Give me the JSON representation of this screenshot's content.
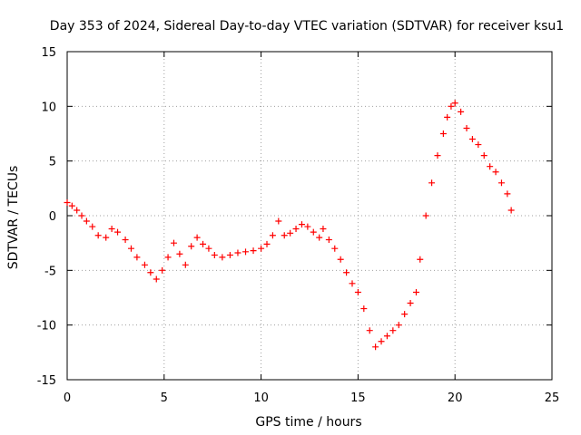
{
  "chart_data": {
    "type": "scatter",
    "title": "Day 353 of 2024, Sidereal Day-to-day VTEC variation (SDTVAR) for receiver ksu1",
    "xlabel": "GPS time / hours",
    "ylabel": "SDTVAR / TECUs",
    "xlim": [
      0,
      25
    ],
    "ylim": [
      -15,
      15
    ],
    "xticks": [
      "0",
      "5",
      "10",
      "15",
      "20",
      "25"
    ],
    "yticks": [
      "-15",
      "-10",
      "-5",
      "0",
      "5",
      "10",
      "15"
    ],
    "grid": true,
    "marker": "plus",
    "color": "#ff0000",
    "series": [
      {
        "name": "SDTVAR",
        "x": [
          0.0,
          0.25,
          0.5,
          0.75,
          1.0,
          1.3,
          1.6,
          2.0,
          2.3,
          2.6,
          3.0,
          3.3,
          3.6,
          4.0,
          4.3,
          4.6,
          4.9,
          5.2,
          5.5,
          5.8,
          6.1,
          6.4,
          6.7,
          7.0,
          7.3,
          7.6,
          8.0,
          8.4,
          8.8,
          9.2,
          9.6,
          10.0,
          10.3,
          10.6,
          10.9,
          11.2,
          11.5,
          11.8,
          12.1,
          12.4,
          12.7,
          13.0,
          13.2,
          13.5,
          13.8,
          14.1,
          14.4,
          14.7,
          15.0,
          15.3,
          15.6,
          15.9,
          16.2,
          16.5,
          16.8,
          17.1,
          17.4,
          17.7,
          18.0,
          18.2,
          18.5,
          18.8,
          19.1,
          19.4,
          19.6,
          19.8,
          20.0,
          20.3,
          20.6,
          20.9,
          21.2,
          21.5,
          21.8,
          22.1,
          22.4,
          22.7,
          22.9
        ],
        "y": [
          1.2,
          0.9,
          0.5,
          0.0,
          -0.5,
          -1.0,
          -1.8,
          -2.0,
          -1.2,
          -1.5,
          -2.2,
          -3.0,
          -3.8,
          -4.5,
          -5.2,
          -5.8,
          -5.0,
          -3.8,
          -2.5,
          -3.5,
          -4.5,
          -2.8,
          -2.0,
          -2.6,
          -3.0,
          -3.6,
          -3.8,
          -3.6,
          -3.4,
          -3.3,
          -3.2,
          -3.0,
          -2.6,
          -1.8,
          -0.5,
          -1.8,
          -1.6,
          -1.2,
          -0.8,
          -1.0,
          -1.5,
          -2.0,
          -1.2,
          -2.2,
          -3.0,
          -4.0,
          -5.2,
          -6.2,
          -7.0,
          -8.5,
          -10.5,
          -12.0,
          -11.5,
          -11.0,
          -10.5,
          -10.0,
          -9.0,
          -8.0,
          -7.0,
          -4.0,
          0.0,
          3.0,
          5.5,
          7.5,
          9.0,
          10.0,
          10.3,
          9.5,
          8.0,
          7.0,
          6.5,
          5.5,
          4.5,
          4.0,
          3.0,
          2.0,
          0.5
        ]
      }
    ]
  }
}
